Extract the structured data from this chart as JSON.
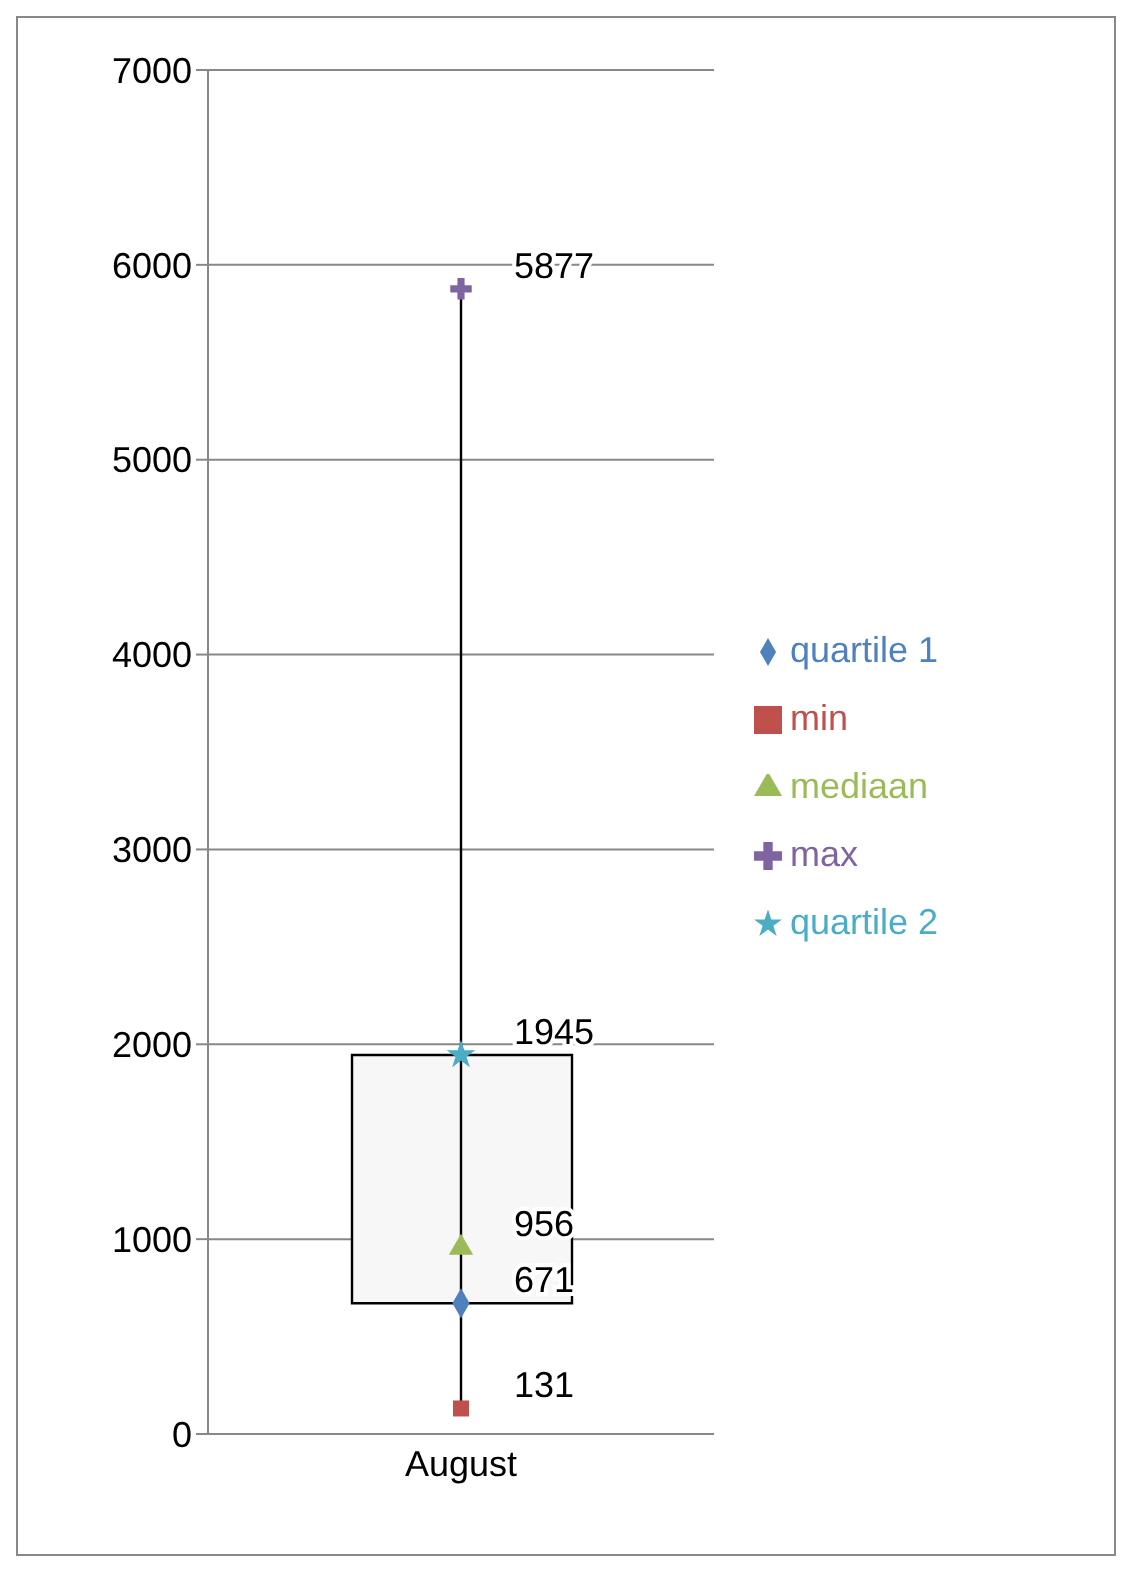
{
  "chart_data": {
    "type": "scatter",
    "categories": [
      "August"
    ],
    "series": [
      {
        "type": "bar",
        "color": "#f7f7f7",
        "values": [
          1274
        ],
        "base": [
          671
        ]
      },
      {
        "type": "line",
        "color": "#000000",
        "x": [
          "August",
          "August"
        ],
        "values": [
          131,
          5877
        ],
        "marker": "none"
      },
      {
        "name": "quartile 1",
        "color": "#4f81bd",
        "values": [
          671
        ],
        "value_labels": [
          "671"
        ],
        "marker": "diamond"
      },
      {
        "name": "min",
        "color": "#c0504d",
        "values": [
          131
        ],
        "value_labels": [
          "131"
        ],
        "marker": "square"
      },
      {
        "name": "mediaan",
        "color": "#9bbb59",
        "values": [
          956
        ],
        "value_labels": [
          "956"
        ],
        "marker": "triangle"
      },
      {
        "name": "max",
        "color": "#8064a2",
        "values": [
          5877
        ],
        "value_labels": [
          "5877"
        ],
        "marker": "cross"
      },
      {
        "name": "quartile 2",
        "color": "#4bacc6",
        "values": [
          1945
        ],
        "value_labels": [
          "1945"
        ],
        "marker": "star"
      }
    ],
    "ylim": [
      0,
      7000
    ],
    "yticks": [
      0,
      1000,
      2000,
      3000,
      4000,
      5000,
      6000,
      7000
    ],
    "grid": "y",
    "legend": "right"
  }
}
